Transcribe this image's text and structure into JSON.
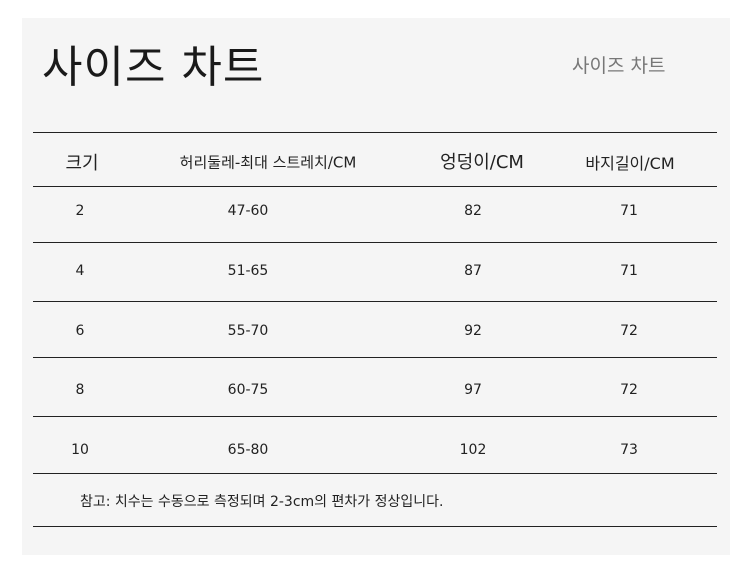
{
  "title": "사이즈 차트",
  "subtitle": "사이즈 차트",
  "table": {
    "headers": [
      "크기",
      "허리둘레-최대 스트레치/CM",
      "엉덩이/CM",
      "바지길이/CM"
    ],
    "rows": [
      [
        "2",
        "47-60",
        "82",
        "71"
      ],
      [
        "4",
        "51-65",
        "87",
        "71"
      ],
      [
        "6",
        "55-70",
        "92",
        "72"
      ],
      [
        "8",
        "60-75",
        "97",
        "72"
      ],
      [
        "10",
        "65-80",
        "102",
        "73"
      ]
    ]
  },
  "note": "참고: 치수는 수동으로 측정되며 2-3cm의 편차가 정상입니다."
}
